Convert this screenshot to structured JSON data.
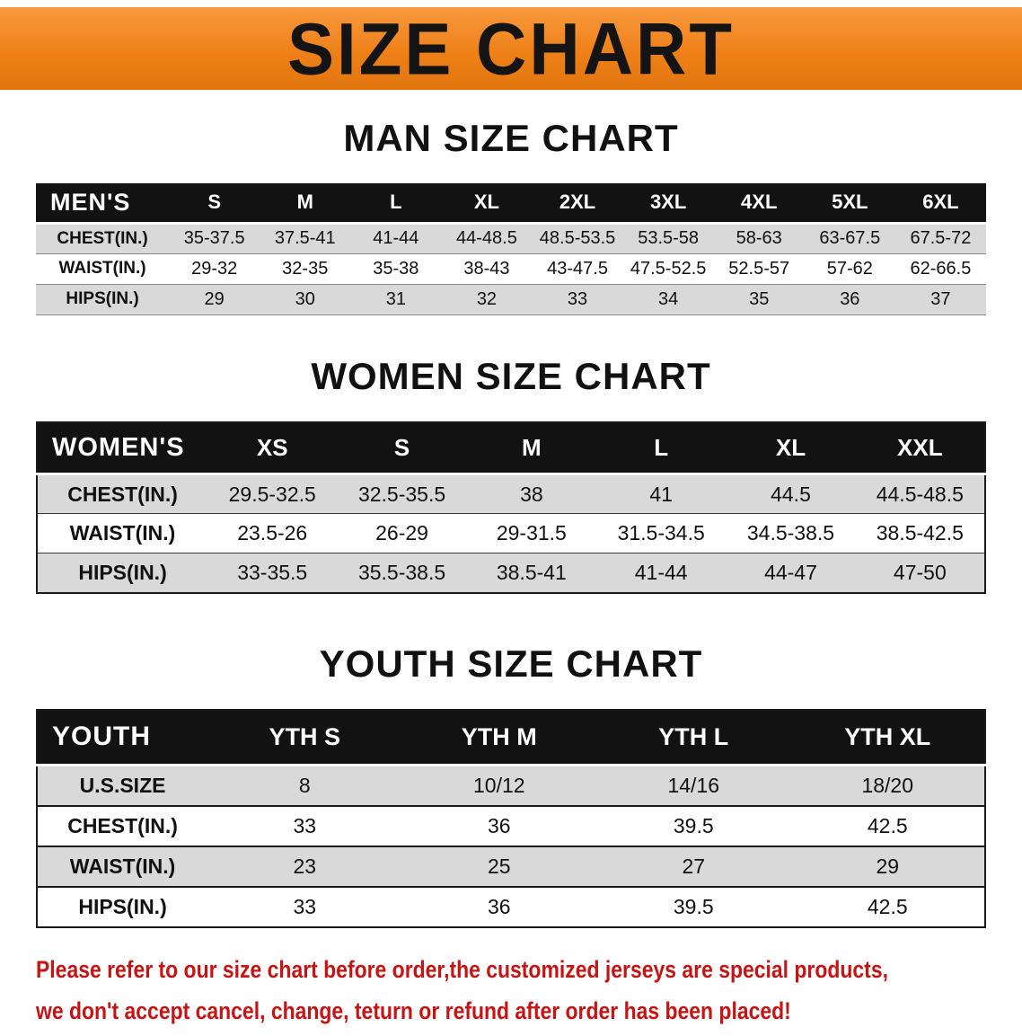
{
  "banner": {
    "title": "SIZE CHART"
  },
  "colors": {
    "banner_bg": "#ef8018",
    "banner_text": "#141414",
    "header_bg": "#121212",
    "header_text": "#ffffff",
    "row_shade": "#d9d9d9",
    "row_plain": "#ffffff",
    "text": "#111111",
    "disclaimer": "#c41414"
  },
  "chart_data": [
    {
      "type": "table",
      "title": "MAN SIZE CHART",
      "header_label": "MEN'S",
      "columns": [
        "S",
        "M",
        "L",
        "XL",
        "2XL",
        "3XL",
        "4XL",
        "5XL",
        "6XL"
      ],
      "rows": [
        {
          "label": "CHEST(IN.)",
          "values": [
            "35-37.5",
            "37.5-41",
            "41-44",
            "44-48.5",
            "48.5-53.5",
            "53.5-58",
            "58-63",
            "63-67.5",
            "67.5-72"
          ]
        },
        {
          "label": "WAIST(IN.)",
          "values": [
            "29-32",
            "32-35",
            "35-38",
            "38-43",
            "43-47.5",
            "47.5-52.5",
            "52.5-57",
            "57-62",
            "62-66.5"
          ]
        },
        {
          "label": "HIPS(IN.)",
          "values": [
            "29",
            "30",
            "31",
            "32",
            "33",
            "34",
            "35",
            "36",
            "37"
          ]
        }
      ]
    },
    {
      "type": "table",
      "title": "WOMEN SIZE CHART",
      "header_label": "WOMEN'S",
      "columns": [
        "XS",
        "S",
        "M",
        "L",
        "XL",
        "XXL"
      ],
      "rows": [
        {
          "label": "CHEST(IN.)",
          "values": [
            "29.5-32.5",
            "32.5-35.5",
            "38",
            "41",
            "44.5",
            "44.5-48.5"
          ]
        },
        {
          "label": "WAIST(IN.)",
          "values": [
            "23.5-26",
            "26-29",
            "29-31.5",
            "31.5-34.5",
            "34.5-38.5",
            "38.5-42.5"
          ]
        },
        {
          "label": "HIPS(IN.)",
          "values": [
            "33-35.5",
            "35.5-38.5",
            "38.5-41",
            "41-44",
            "44-47",
            "47-50"
          ]
        }
      ]
    },
    {
      "type": "table",
      "title": "YOUTH SIZE CHART",
      "header_label": "YOUTH",
      "columns": [
        "YTH S",
        "YTH M",
        "YTH L",
        "YTH XL"
      ],
      "rows": [
        {
          "label": "U.S.SIZE",
          "values": [
            "8",
            "10/12",
            "14/16",
            "18/20"
          ]
        },
        {
          "label": "CHEST(IN.)",
          "values": [
            "33",
            "36",
            "39.5",
            "42.5"
          ]
        },
        {
          "label": "WAIST(IN.)",
          "values": [
            "23",
            "25",
            "27",
            "29"
          ]
        },
        {
          "label": "HIPS(IN.)",
          "values": [
            "33",
            "36",
            "39.5",
            "42.5"
          ]
        }
      ]
    }
  ],
  "disclaimer": {
    "line1": "Please refer to our size chart before order,the customized jerseys are special products,",
    "line2": "we don't accept cancel, change, teturn or refund after order has been placed!"
  }
}
